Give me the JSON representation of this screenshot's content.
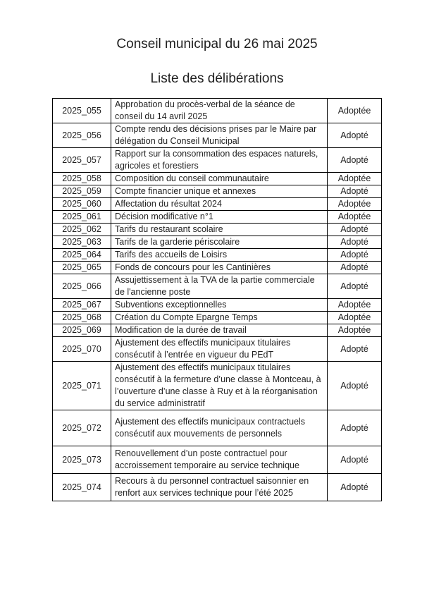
{
  "page": {
    "title": "Conseil municipal du 26 mai 2025",
    "subtitle": "Liste des délibérations"
  },
  "colors": {
    "text": "#1f1f1f",
    "border": "#000000",
    "background": "#ffffff"
  },
  "table": {
    "rows": [
      {
        "id": "2025_055",
        "title": "Approbation du procès-verbal de la séance de conseil du 14 avril 2025",
        "status": "Adoptée"
      },
      {
        "id": "2025_056",
        "title": "Compte rendu des décisions prises par le Maire par délégation du Conseil Municipal",
        "status": "Adopté"
      },
      {
        "id": "2025_057",
        "title": "Rapport sur la consommation des espaces naturels, agricoles et forestiers",
        "status": "Adopté"
      },
      {
        "id": "2025_058",
        "title": "Composition du conseil communautaire",
        "status": "Adoptée"
      },
      {
        "id": "2025_059",
        "title": "Compte financier unique et annexes",
        "status": "Adopté"
      },
      {
        "id": "2025_060",
        "title": "Affectation du résultat 2024",
        "status": "Adoptée"
      },
      {
        "id": "2025_061",
        "title": "Décision modificative n°1",
        "status": "Adoptée"
      },
      {
        "id": "2025_062",
        "title": "Tarifs du restaurant scolaire",
        "status": "Adopté"
      },
      {
        "id": "2025_063",
        "title": "Tarifs de la garderie périscolaire",
        "status": "Adopté"
      },
      {
        "id": "2025_064",
        "title": "Tarifs des accueils de Loisirs",
        "status": "Adopté"
      },
      {
        "id": "2025_065",
        "title": "Fonds de concours pour les Cantinières",
        "status": "Adopté"
      },
      {
        "id": "2025_066",
        "title": "Assujettissement à la TVA de la partie commerciale de l'ancienne poste",
        "status": "Adopté"
      },
      {
        "id": "2025_067",
        "title": "Subventions exceptionnelles",
        "status": "Adoptée"
      },
      {
        "id": "2025_068",
        "title": "Création du Compte Epargne Temps",
        "status": "Adoptée"
      },
      {
        "id": "2025_069",
        "title": "Modification de la durée de travail",
        "status": "Adoptée"
      },
      {
        "id": "2025_070",
        "title": "Ajustement des effectifs municipaux titulaires consécutif à l’entrée en vigueur du PEdT",
        "status": "Adopté"
      },
      {
        "id": "2025_071",
        "title": "Ajustement des effectifs municipaux titulaires consécutif à la fermeture d’une classe à Montceau, à l’ouverture d’une classe à Ruy et à la réorganisation du service administratif",
        "status": "Adopté"
      },
      {
        "id": "2025_072",
        "title": "Ajustement des effectifs municipaux contractuels consécutif aux mouvements de personnels",
        "status": "Adopté"
      },
      {
        "id": "2025_073",
        "title": "Renouvellement d’un poste contractuel pour accroissement temporaire au service technique",
        "status": "Adopté"
      },
      {
        "id": "2025_074",
        "title": "Recours à du personnel contractuel saisonnier en renfort aux services technique pour l’été 2025",
        "status": "Adopté"
      }
    ]
  }
}
